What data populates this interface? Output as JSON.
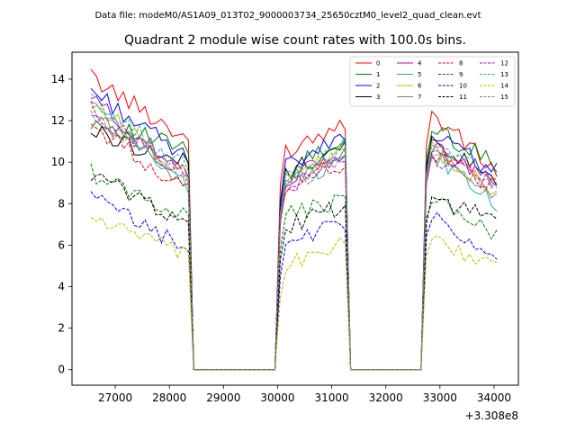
{
  "chart_data": {
    "type": "line",
    "suptitle": "Data file: modeM0/AS1A09_013T02_9000003734_25650cztM0_level2_quad_clean.evt",
    "title": "Quadrant 2 module wise count rates with 100.0s bins.",
    "xlabel": "",
    "ylabel": "",
    "x_offset_label": "+3.308e8",
    "xlim": [
      26200,
      34450
    ],
    "ylim": [
      -0.75,
      15.3
    ],
    "xticks": [
      27000,
      28000,
      29000,
      30000,
      31000,
      32000,
      33000,
      34000
    ],
    "xtick_labels": [
      "27000",
      "28000",
      "29000",
      "30000",
      "31000",
      "32000",
      "33000",
      "34000"
    ],
    "yticks": [
      0,
      2,
      4,
      6,
      8,
      10,
      12,
      14
    ],
    "ytick_labels": [
      "0",
      "2",
      "4",
      "6",
      "8",
      "10",
      "12",
      "14"
    ],
    "legend_position": "top-right",
    "legend_columns": 4,
    "x_start": 26550,
    "x_step": 100,
    "n_points": 76,
    "segments": [
      {
        "from": 26550,
        "to": 28350,
        "shape": "decay"
      },
      {
        "from": 28450,
        "to": 29950,
        "shape": "zero"
      },
      {
        "from": 30050,
        "to": 31250,
        "shape": "rise"
      },
      {
        "from": 31350,
        "to": 32650,
        "shape": "zero"
      },
      {
        "from": 32750,
        "to": 34050,
        "shape": "decay2"
      }
    ],
    "series": [
      {
        "name": "0",
        "color": "#ff0000",
        "dash": "solid",
        "seg1": [
          14.1,
          11.1
        ],
        "seg3": [
          10.4,
          12.0
        ],
        "seg5": [
          12.6,
          9.5
        ]
      },
      {
        "name": "1",
        "color": "#008000",
        "dash": "solid",
        "seg1": [
          12.0,
          10.6
        ],
        "seg3": [
          9.3,
          11.2
        ],
        "seg5": [
          11.8,
          9.9
        ]
      },
      {
        "name": "2",
        "color": "#0000ff",
        "dash": "solid",
        "seg1": [
          13.5,
          10.1
        ],
        "seg3": [
          9.6,
          11.2
        ],
        "seg5": [
          11.5,
          9.5
        ]
      },
      {
        "name": "3",
        "color": "#000000",
        "dash": "solid",
        "seg1": [
          11.5,
          9.9
        ],
        "seg3": [
          9.3,
          10.9
        ],
        "seg5": [
          11.2,
          9.2
        ]
      },
      {
        "name": "4",
        "color": "#bf00bf",
        "dash": "solid",
        "seg1": [
          13.1,
          9.2
        ],
        "seg3": [
          9.0,
          10.4
        ],
        "seg5": [
          11.0,
          8.8
        ]
      },
      {
        "name": "5",
        "color": "#20b2aa",
        "dash": "solid",
        "seg1": [
          12.8,
          8.8
        ],
        "seg3": [
          8.7,
          10.2
        ],
        "seg5": [
          10.6,
          7.9
        ]
      },
      {
        "name": "6",
        "color": "#bfbf00",
        "dash": "solid",
        "seg1": [
          12.9,
          9.4
        ],
        "seg3": [
          8.9,
          10.6
        ],
        "seg5": [
          10.9,
          8.6
        ]
      },
      {
        "name": "7",
        "color": "#808080",
        "dash": "solid",
        "seg1": [
          12.4,
          9.0
        ],
        "seg3": [
          9.0,
          10.3
        ],
        "seg5": [
          10.8,
          8.4
        ]
      },
      {
        "name": "8",
        "color": "#ff0000",
        "dash": "dashed",
        "seg1": [
          11.8,
          8.6
        ],
        "seg3": [
          8.8,
          10.0
        ],
        "seg5": [
          10.5,
          8.9
        ]
      },
      {
        "name": "9",
        "color": "#008000",
        "dash": "dashed",
        "seg1": [
          9.5,
          7.3
        ],
        "seg3": [
          7.3,
          8.2
        ],
        "seg5": [
          8.5,
          6.4
        ]
      },
      {
        "name": "10",
        "color": "#0000ff",
        "dash": "dashed",
        "seg1": [
          8.3,
          5.8
        ],
        "seg3": [
          6.0,
          7.1
        ],
        "seg5": [
          7.5,
          5.1
        ]
      },
      {
        "name": "11",
        "color": "#000000",
        "dash": "dashed",
        "seg1": [
          9.4,
          7.1
        ],
        "seg3": [
          6.8,
          7.9
        ],
        "seg5": [
          8.2,
          7.4
        ]
      },
      {
        "name": "12",
        "color": "#bf00bf",
        "dash": "dashed",
        "seg1": [
          12.5,
          9.3
        ],
        "seg3": [
          8.5,
          10.1
        ],
        "seg5": [
          10.4,
          8.8
        ]
      },
      {
        "name": "13",
        "color": "#20b2aa",
        "dash": "dashed",
        "seg1": [
          13.0,
          9.6
        ],
        "seg3": [
          9.1,
          10.8
        ],
        "seg5": [
          11.0,
          9.1
        ]
      },
      {
        "name": "14",
        "color": "#bfbf00",
        "dash": "dashed",
        "seg1": [
          7.4,
          5.4
        ],
        "seg3": [
          5.0,
          6.0
        ],
        "seg5": [
          6.4,
          4.9
        ]
      },
      {
        "name": "15",
        "color": "#808080",
        "dash": "dashed",
        "seg1": [
          12.1,
          9.3
        ],
        "seg3": [
          8.7,
          10.2
        ],
        "seg5": [
          10.7,
          8.9
        ]
      }
    ]
  }
}
